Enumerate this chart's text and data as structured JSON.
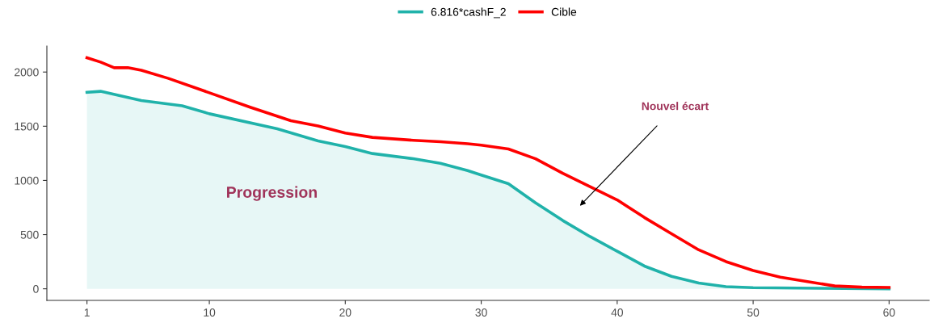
{
  "chart_data": {
    "type": "line",
    "legend": "top",
    "grid": false,
    "xlim": [
      -1.95,
      62.95
    ],
    "ylim": [
      -107,
      2240
    ],
    "xticks": [
      1,
      10,
      20,
      30,
      40,
      50,
      60
    ],
    "yticks": [
      0,
      500,
      1000,
      1500,
      2000
    ],
    "series": [
      {
        "name": "6.816*cashF_2",
        "type": "area",
        "color": "#20b2aa",
        "x": [
          1,
          2,
          5,
          8,
          10,
          15,
          18,
          20,
          22,
          25,
          27,
          29,
          30,
          32,
          34,
          36,
          38,
          40,
          42,
          44,
          46,
          48,
          50,
          55,
          60
        ],
        "values": [
          1813,
          1822,
          1737,
          1689,
          1615,
          1477,
          1365,
          1312,
          1248,
          1200,
          1158,
          1091,
          1050,
          970,
          793,
          630,
          482,
          346,
          210,
          115,
          53,
          20,
          10,
          5,
          0
        ]
      },
      {
        "name": "Cible",
        "color": "#ff0000",
        "x": [
          1,
          2,
          3,
          4,
          5,
          7,
          10,
          13,
          16,
          18,
          20,
          22,
          25,
          27,
          29,
          30,
          32,
          34,
          36,
          38,
          40,
          42,
          44,
          46,
          48,
          50,
          52,
          54,
          56,
          58,
          60
        ],
        "values": [
          2132,
          2092,
          2040,
          2040,
          2016,
          1941,
          1809,
          1676,
          1551,
          1503,
          1437,
          1397,
          1370,
          1357,
          1338,
          1325,
          1290,
          1200,
          1065,
          943,
          820,
          658,
          508,
          359,
          251,
          169,
          107,
          66,
          26,
          15,
          12
        ]
      }
    ],
    "annotations": [
      "Nouvel écart",
      "Progression"
    ]
  }
}
